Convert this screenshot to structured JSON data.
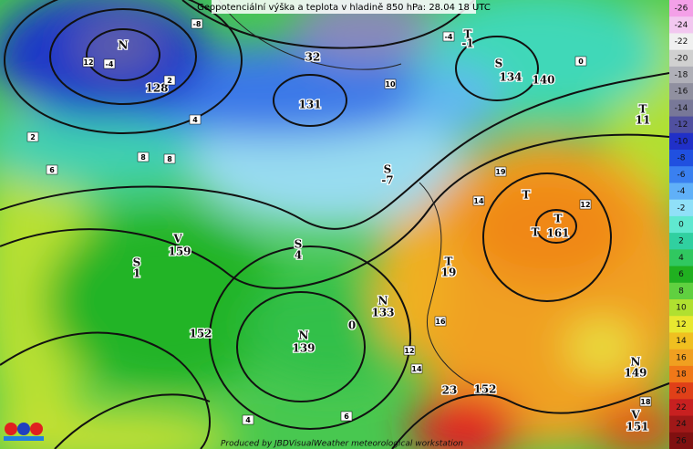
{
  "title": "Geopotenciální výška a teplota v hladině 850 hPa: 28.04 18 UTC",
  "footer": "Produced by JBDVisualWeather meteorological workstation",
  "legend": {
    "labels": [
      "-26",
      "-24",
      "-22",
      "-20",
      "-18",
      "-16",
      "-14",
      "-12",
      "-10",
      "-8",
      "-6",
      "-4",
      "-2",
      "0",
      "2",
      "4",
      "6",
      "8",
      "10",
      "12",
      "14",
      "16",
      "18",
      "20",
      "22",
      "24",
      "26"
    ],
    "colors": [
      "#f4a0e8",
      "#f2c8f0",
      "#f0f0f0",
      "#d0d0d0",
      "#b0b0b8",
      "#9090a0",
      "#787898",
      "#5050a0",
      "#2030c8",
      "#2050e0",
      "#3a80f0",
      "#60b0f8",
      "#90e0f8",
      "#60e8d0",
      "#30d0a0",
      "#30c860",
      "#20b020",
      "#60d040",
      "#b0e030",
      "#e8e830",
      "#f0c020",
      "#f0a020",
      "#f07818",
      "#e04018",
      "#c82020",
      "#a01818",
      "#801010"
    ]
  },
  "map_labels": [
    "N",
    "128",
    "32",
    "131",
    "T",
    "-1",
    "S",
    "134",
    "140",
    "T",
    "11",
    "V",
    "159",
    "S",
    "1",
    "S",
    "4",
    "S",
    "-7",
    "T",
    "19",
    "N",
    "133",
    "N",
    "139",
    "T",
    "161",
    "T",
    "T",
    "N",
    "149",
    "V",
    "151",
    "152",
    "152",
    "0",
    "23"
  ],
  "isotherm_labels": [
    "12",
    "-4",
    "-8",
    "2",
    "4",
    "6",
    "8",
    "8",
    "2",
    "10",
    "0",
    "-4",
    "12",
    "18",
    "14",
    "12",
    "16",
    "4",
    "6",
    "19",
    "14"
  ]
}
